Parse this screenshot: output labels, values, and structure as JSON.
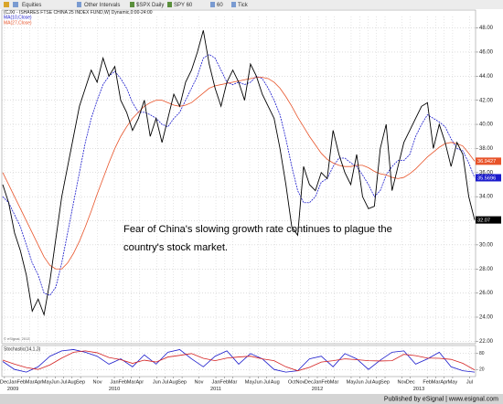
{
  "toolbar": {
    "items": [
      "Equities",
      "Other Intervals",
      "$SPX Daily",
      "SPY 60",
      "60",
      "Tick"
    ]
  },
  "copyright": "© eSignal, 2013",
  "footer": "Published by eSignal | www.esignal.com",
  "chart_data": [
    {
      "type": "line",
      "title": "(CJXI - ISHARES FTSE CHINA 25 INDEX FUND,W) Dynamic,0:00-24:00",
      "annotation": [
        "Fear of China's slowing growth rate continues to plague the",
        "country's stock market."
      ],
      "xlim": [
        2008.9,
        2013.55
      ],
      "xticks": [
        {
          "value": 2008.917,
          "label": "Dec"
        },
        {
          "value": 2009.0,
          "label": "Jan"
        },
        {
          "value": 2009.083,
          "label": "Feb"
        },
        {
          "value": 2009.167,
          "label": "Mar"
        },
        {
          "value": 2009.25,
          "label": "Apr"
        },
        {
          "value": 2009.333,
          "label": "May"
        },
        {
          "value": 2009.417,
          "label": "Jun"
        },
        {
          "value": 2009.5,
          "label": "Jul"
        },
        {
          "value": 2009.583,
          "label": "Aug"
        },
        {
          "value": 2009.667,
          "label": "Sep"
        },
        {
          "value": 2009.833,
          "label": "Nov"
        },
        {
          "value": 2010.0,
          "label": "Jan"
        },
        {
          "value": 2010.083,
          "label": "Feb"
        },
        {
          "value": 2010.167,
          "label": "Mar"
        },
        {
          "value": 2010.25,
          "label": "Apr"
        },
        {
          "value": 2010.417,
          "label": "Jun"
        },
        {
          "value": 2010.5,
          "label": "Jul"
        },
        {
          "value": 2010.583,
          "label": "Aug"
        },
        {
          "value": 2010.667,
          "label": "Sep"
        },
        {
          "value": 2010.833,
          "label": "Nov"
        },
        {
          "value": 2011.0,
          "label": "Jan"
        },
        {
          "value": 2011.083,
          "label": "Feb"
        },
        {
          "value": 2011.167,
          "label": "Mar"
        },
        {
          "value": 2011.333,
          "label": "May"
        },
        {
          "value": 2011.417,
          "label": "Jun"
        },
        {
          "value": 2011.5,
          "label": "Jul"
        },
        {
          "value": 2011.583,
          "label": "Aug"
        },
        {
          "value": 2011.75,
          "label": "Oct"
        },
        {
          "value": 2011.833,
          "label": "Nov"
        },
        {
          "value": 2011.917,
          "label": "Dec"
        },
        {
          "value": 2012.0,
          "label": "Jan"
        },
        {
          "value": 2012.083,
          "label": "Feb"
        },
        {
          "value": 2012.167,
          "label": "Mar"
        },
        {
          "value": 2012.333,
          "label": "May"
        },
        {
          "value": 2012.417,
          "label": "Jun"
        },
        {
          "value": 2012.5,
          "label": "Jul"
        },
        {
          "value": 2012.583,
          "label": "Aug"
        },
        {
          "value": 2012.667,
          "label": "Sep"
        },
        {
          "value": 2012.833,
          "label": "Nov"
        },
        {
          "value": 2012.917,
          "label": "Dec"
        },
        {
          "value": 2013.083,
          "label": "Feb"
        },
        {
          "value": 2013.167,
          "label": "Mar"
        },
        {
          "value": 2013.25,
          "label": "Apr"
        },
        {
          "value": 2013.333,
          "label": "May"
        },
        {
          "value": 2013.5,
          "label": "Jul"
        }
      ],
      "year_ticks": [
        2009,
        2010,
        2011,
        2012,
        2013
      ],
      "ylim": [
        21.8,
        48.5
      ],
      "yticks": [
        {
          "value": 22,
          "label": "22.00"
        },
        {
          "value": 24,
          "label": "24.00"
        },
        {
          "value": 26,
          "label": "26.00"
        },
        {
          "value": 28,
          "label": "28.00"
        },
        {
          "value": 30,
          "label": "30.00"
        },
        {
          "value": 32,
          "label": "32.00"
        },
        {
          "value": 34,
          "label": "34.00"
        },
        {
          "value": 36,
          "label": "36.00"
        },
        {
          "value": 38,
          "label": "38.00"
        },
        {
          "value": 40,
          "label": "40.00"
        },
        {
          "value": 42,
          "label": "42.00"
        },
        {
          "value": 44,
          "label": "44.00"
        },
        {
          "value": 46,
          "label": "46.00"
        },
        {
          "value": 48,
          "label": "48.00"
        }
      ],
      "grid": true,
      "series": [
        {
          "name": "MA(10,Close)",
          "color": "#1a1acc",
          "dash": true,
          "values": [
            34.0,
            33.5,
            32.5,
            31.5,
            30.0,
            28.5,
            27.5,
            26.0,
            25.8,
            26.5,
            28.5,
            31.0,
            33.5,
            36.0,
            38.5,
            40.5,
            42.0,
            43.3,
            44.0,
            44.4,
            43.8,
            43.0,
            41.8,
            41.0,
            41.0,
            40.8,
            40.5,
            40.0,
            39.8,
            40.5,
            41.0,
            42.0,
            43.0,
            44.0,
            45.5,
            45.8,
            45.5,
            44.5,
            43.5,
            43.3,
            43.5,
            43.3,
            43.5,
            44.0,
            43.8,
            43.0,
            42.0,
            40.8,
            38.8,
            36.5,
            34.5,
            33.5,
            33.5,
            34.0,
            35.2,
            35.5,
            36.5,
            37.2,
            37.2,
            36.8,
            36.5,
            35.8,
            35.0,
            34.0,
            34.5,
            35.8,
            36.5,
            37.0,
            37.0,
            37.5,
            39.0,
            40.0,
            40.8,
            40.5,
            40.2,
            39.8,
            38.8,
            38.0,
            37.8,
            36.8,
            35.5696
          ]
        },
        {
          "name": "MA(27,Close)",
          "color": "#e8542a",
          "dash": false,
          "values": [
            36.0,
            35.0,
            34.0,
            33.0,
            32.0,
            31.0,
            30.0,
            29.0,
            28.3,
            28.0,
            28.0,
            28.5,
            29.3,
            30.3,
            31.5,
            32.8,
            34.2,
            35.5,
            36.8,
            38.0,
            39.0,
            39.8,
            40.5,
            41.0,
            41.5,
            41.8,
            42.0,
            42.0,
            41.8,
            41.6,
            41.5,
            41.6,
            41.8,
            42.2,
            42.6,
            43.0,
            43.2,
            43.3,
            43.4,
            43.5,
            43.6,
            43.7,
            43.8,
            43.9,
            43.9,
            43.8,
            43.5,
            43.0,
            42.3,
            41.5,
            40.6,
            39.8,
            39.0,
            38.3,
            37.6,
            37.1,
            36.8,
            36.6,
            36.5,
            36.5,
            36.6,
            36.6,
            36.4,
            36.1,
            35.9,
            35.8,
            35.6,
            35.5,
            35.6,
            35.9,
            36.3,
            36.8,
            37.3,
            37.7,
            38.1,
            38.4,
            38.5,
            38.4,
            38.2,
            37.6,
            36.9427
          ]
        },
        {
          "color": "#000000",
          "dash": false,
          "values": [
            35.0,
            33.5,
            31.0,
            29.5,
            27.5,
            24.5,
            25.5,
            24.2,
            27.0,
            30.5,
            34.0,
            36.5,
            39.0,
            41.5,
            43.0,
            44.5,
            43.5,
            45.5,
            44.0,
            44.8,
            42.0,
            41.0,
            39.5,
            40.5,
            42.0,
            39.0,
            40.5,
            38.5,
            40.5,
            42.5,
            41.5,
            43.5,
            44.5,
            46.0,
            47.8,
            45.0,
            43.0,
            41.5,
            43.5,
            44.5,
            43.5,
            42.0,
            45.0,
            44.0,
            42.5,
            41.5,
            40.5,
            38.0,
            35.0,
            31.5,
            30.8,
            36.5,
            35.0,
            34.5,
            36.0,
            35.5,
            39.5,
            37.5,
            36.0,
            35.0,
            37.5,
            34.0,
            33.0,
            33.2,
            38.0,
            40.0,
            34.5,
            36.5,
            38.5,
            39.5,
            40.5,
            41.5,
            41.8,
            38.0,
            40.0,
            38.5,
            36.5,
            38.5,
            37.5,
            34.0,
            32.07
          ]
        }
      ]
    },
    {
      "type": "line",
      "title": "Stochastic(14,1,3)",
      "ylim": [
        0,
        100
      ],
      "yticks": [
        20,
        80
      ],
      "series": [
        {
          "color": "#1a1acc",
          "values": [
            50,
            20,
            10,
            30,
            70,
            90,
            95,
            85,
            70,
            40,
            60,
            30,
            75,
            40,
            85,
            95,
            60,
            30,
            70,
            90,
            40,
            80,
            60,
            20,
            10,
            15,
            60,
            70,
            30,
            80,
            60,
            20,
            55,
            85,
            90,
            40,
            60,
            85,
            30,
            15,
            10
          ]
        },
        {
          "color": "#d42020",
          "values": [
            55,
            40,
            27,
            20,
            37,
            63,
            85,
            90,
            83,
            65,
            57,
            43,
            55,
            48,
            67,
            73,
            80,
            62,
            53,
            63,
            67,
            70,
            60,
            53,
            30,
            15,
            28,
            48,
            53,
            60,
            57,
            53,
            52,
            53,
            77,
            72,
            63,
            62,
            58,
            43,
            18
          ]
        }
      ]
    }
  ]
}
